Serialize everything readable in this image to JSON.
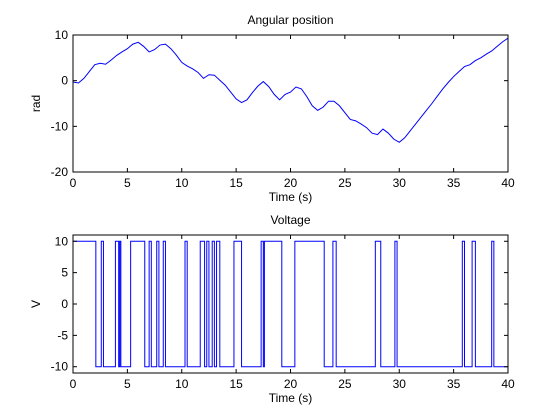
{
  "colors": {
    "line": "#0000ff",
    "axes": "#000000",
    "background": "#ffffff"
  },
  "chart_data": [
    {
      "type": "line",
      "title": "Angular position",
      "xlabel": "Time (s)",
      "ylabel": "rad",
      "xlim": [
        0,
        40
      ],
      "ylim": [
        -20,
        10
      ],
      "xticks": [
        0,
        5,
        10,
        15,
        20,
        25,
        30,
        35,
        40
      ],
      "yticks": [
        -20,
        -10,
        0,
        10
      ],
      "grid": false,
      "series": [
        {
          "x": [
            0,
            0.5,
            1,
            1.5,
            2,
            2.5,
            3,
            3.5,
            4,
            4.5,
            5,
            5.5,
            6,
            6.5,
            7,
            7.5,
            8,
            8.5,
            9,
            9.5,
            10,
            10.5,
            11,
            11.5,
            12,
            12.5,
            13,
            13.5,
            14,
            14.5,
            15,
            15.5,
            16,
            16.5,
            17,
            17.5,
            18,
            18.5,
            19,
            19.5,
            20,
            20.5,
            21,
            21.5,
            22,
            22.5,
            23,
            23.5,
            24,
            24.5,
            25,
            25.5,
            26,
            26.5,
            27,
            27.5,
            28,
            28.5,
            29,
            29.5,
            30,
            30.5,
            31,
            31.5,
            32,
            32.5,
            33,
            33.5,
            34,
            34.5,
            35,
            35.5,
            36,
            36.5,
            37,
            37.5,
            38,
            38.5,
            39,
            39.5,
            40
          ],
          "y": [
            -0.3,
            -0.5,
            0.5,
            2,
            3.5,
            3.8,
            3.6,
            4.5,
            5.5,
            6.3,
            7,
            8,
            8.4,
            7.5,
            6.3,
            6.8,
            7.8,
            8,
            7,
            5.6,
            4,
            3.2,
            2.6,
            1.8,
            0.5,
            1.3,
            1.2,
            0.1,
            -1,
            -2.5,
            -4,
            -4.8,
            -4.2,
            -2.6,
            -1.2,
            -0.2,
            -1.3,
            -3,
            -4.2,
            -3,
            -2.5,
            -1.4,
            -1.8,
            -3.5,
            -5.5,
            -6.5,
            -5.8,
            -4.5,
            -4.5,
            -5.5,
            -7,
            -8.5,
            -8.8,
            -9.5,
            -10.3,
            -11.5,
            -11.8,
            -10.6,
            -11.5,
            -12.8,
            -13.5,
            -12.5,
            -11,
            -9.5,
            -8,
            -6.5,
            -5,
            -3.4,
            -1.8,
            -0.4,
            0.9,
            2,
            3.1,
            3.5,
            4.4,
            5,
            5.8,
            6.5,
            7.5,
            8.5,
            9.3
          ]
        }
      ]
    },
    {
      "type": "line",
      "title": "Voltage",
      "xlabel": "Time (s)",
      "ylabel": "V",
      "xlim": [
        0,
        40
      ],
      "ylim": [
        -11,
        11
      ],
      "xticks": [
        0,
        5,
        10,
        15,
        20,
        25,
        30,
        35,
        40
      ],
      "yticks": [
        -10,
        -5,
        0,
        5,
        10
      ],
      "grid": false,
      "step": true,
      "series": [
        {
          "x": [
            0,
            2.1,
            2.6,
            2.8,
            3.9,
            4.2,
            4.3,
            4.4,
            5.3,
            6.6,
            7.0,
            7.2,
            7.7,
            7.9,
            8.3,
            8.5,
            10.3,
            10.5,
            11.7,
            12.1,
            12.3,
            12.5,
            12.8,
            13.0,
            13.2,
            13.5,
            14.8,
            15.5,
            17.3,
            17.5,
            17.6,
            19.2,
            20.4,
            23.1,
            23.9,
            24.2,
            27.8,
            28.3,
            29.6,
            29.8,
            35.8,
            36.0,
            36.7,
            37.0,
            38.5,
            38.7,
            40
          ],
          "y": [
            10,
            -10,
            10,
            -10,
            10,
            -10,
            10,
            -10,
            10,
            -10,
            10,
            -10,
            10,
            -10,
            10,
            -10,
            10,
            -10,
            10,
            -10,
            10,
            -10,
            10,
            -10,
            10,
            -10,
            10,
            -10,
            10,
            -10,
            10,
            -10,
            10,
            -10,
            10,
            -10,
            10,
            -10,
            10,
            -10,
            10,
            -10,
            10,
            -10,
            10,
            -10,
            10
          ]
        }
      ]
    }
  ]
}
